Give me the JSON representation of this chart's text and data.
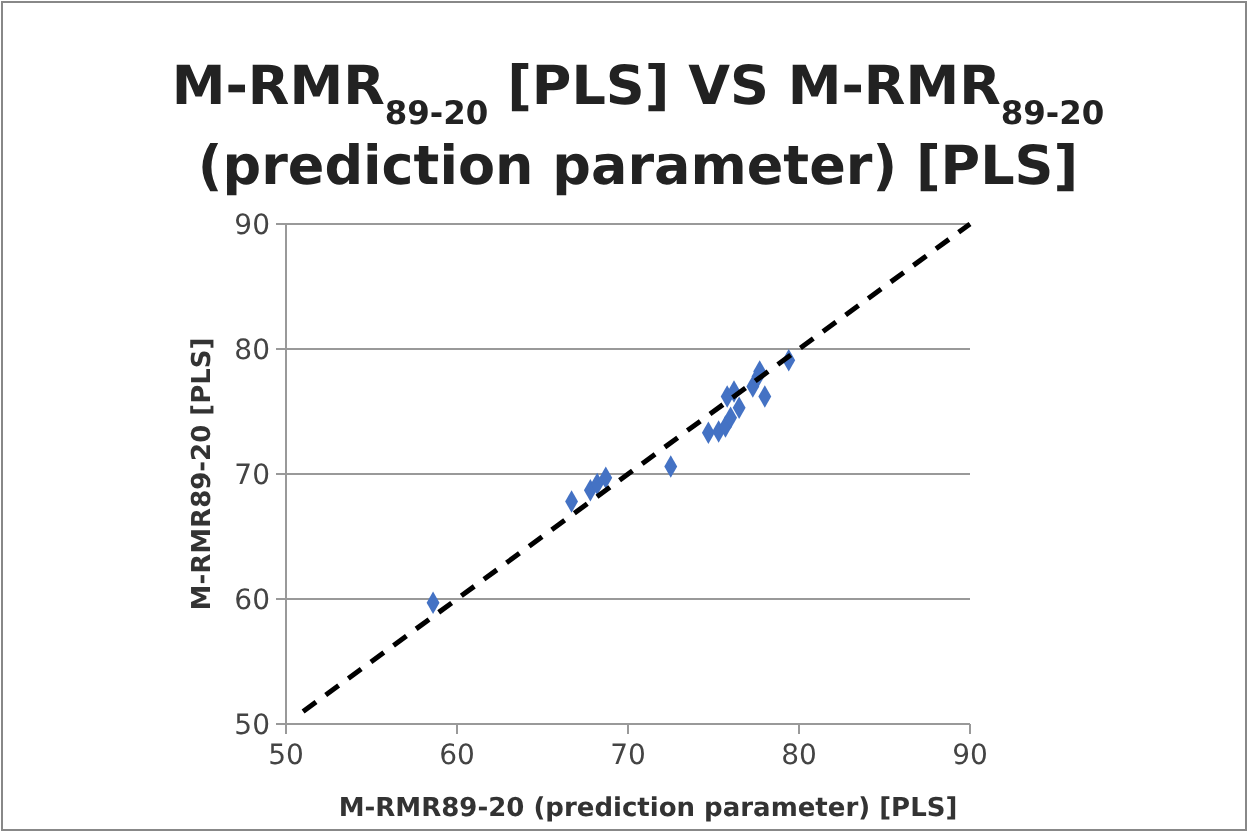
{
  "chart_data": {
    "type": "scatter",
    "title": "M-RMR$_{89-20}$  [PLS] VS M-RMR$_{89-20}$ (prediction parameter) [PLS]",
    "xlabel": "M-RMR89-20 (prediction parameter) [PLS]",
    "ylabel": "M-RMR89-20 [PLS]",
    "xlim": [
      50,
      90
    ],
    "ylim": [
      50,
      90
    ],
    "xticks": [
      50,
      60,
      70,
      80,
      90
    ],
    "yticks": [
      50,
      60,
      70,
      80,
      90
    ],
    "grid": "y",
    "legend": false,
    "marker": "diamond",
    "series": [
      {
        "color": "#4472c4",
        "x": [
          58.6,
          66.7,
          67.8,
          68.2,
          68.7,
          72.5,
          74.7,
          75.3,
          75.7,
          75.8,
          76.2,
          76.0,
          76.5,
          77.3,
          77.6,
          77.7,
          78.0,
          79.4
        ],
        "values": [
          59.7,
          67.8,
          68.7,
          69.2,
          69.7,
          70.6,
          73.3,
          73.4,
          73.8,
          76.2,
          76.6,
          74.5,
          75.3,
          77.0,
          77.8,
          78.2,
          76.2,
          79.1
        ]
      },
      {
        "type": "line",
        "color": "#000000",
        "line_style": "dashed",
        "marker": "none",
        "x": [
          51,
          90
        ],
        "values": [
          51,
          90
        ]
      }
    ]
  }
}
